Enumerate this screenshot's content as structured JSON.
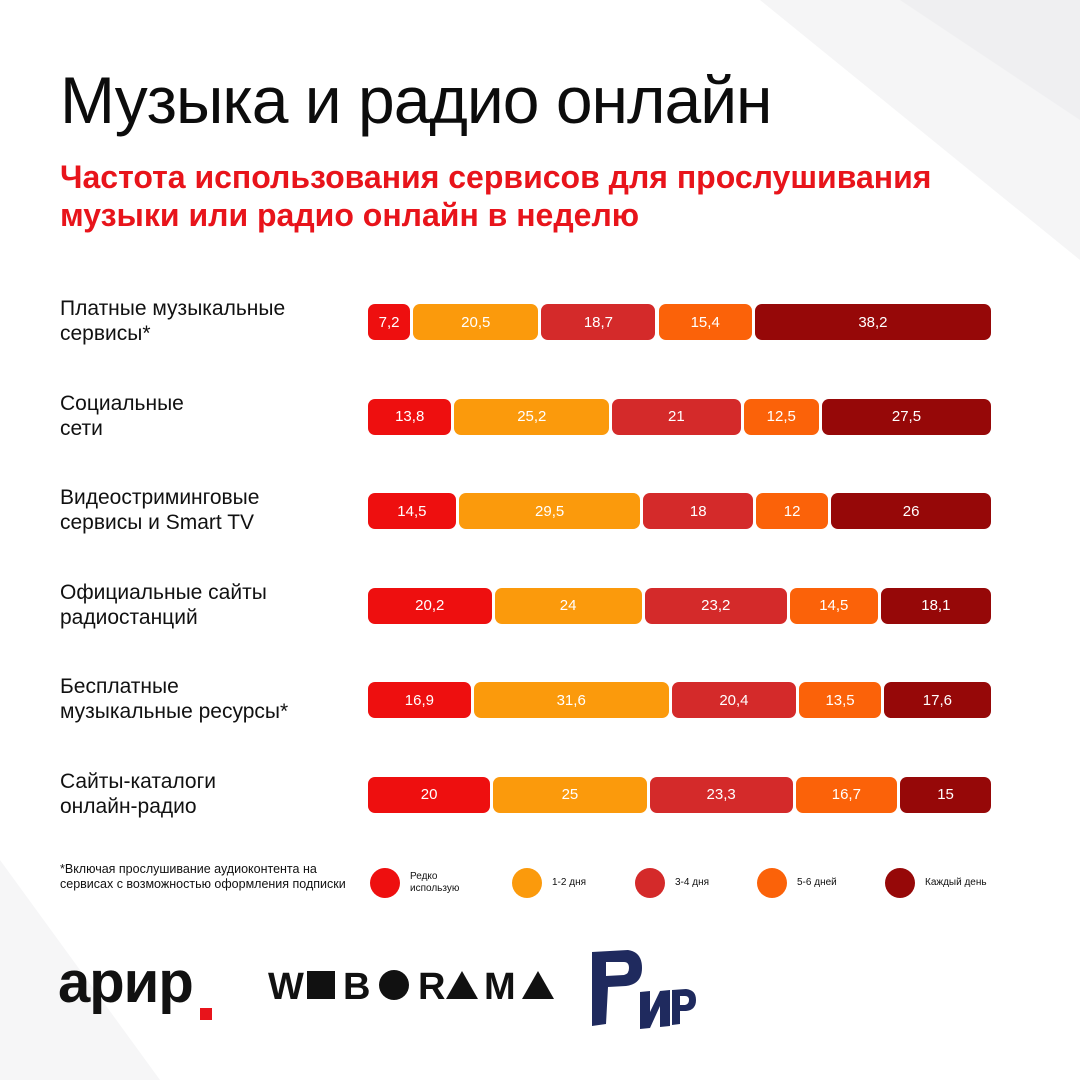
{
  "header": {
    "title": "Музыка и радио онлайн",
    "subtitle": "Частота использования сервисов для прослушивания музыки или радио онлайн в неделю"
  },
  "colors": {
    "rare": "#ee0f0f",
    "d12": "#fb9a0c",
    "d34": "#d42a2a",
    "d56": "#fb6209",
    "daily": "#960808",
    "accent": "#e8141b",
    "logo_navy": "#1f2a5e"
  },
  "chart_data": {
    "type": "bar",
    "orientation": "horizontal",
    "stacked": true,
    "unit": "%",
    "title": "Частота использования сервисов для прослушивания музыки или радио онлайн в неделю",
    "categories": [
      "Платные музыкальные сервисы*",
      "Социальные сети",
      "Видеостриминговые сервисы и Smart TV",
      "Официальные сайты радиостанций",
      "Бесплатные музыкальные ресурсы*",
      "Сайты-каталоги онлайн-радио"
    ],
    "category_labels": [
      [
        "Платные музыкальные",
        "сервисы*"
      ],
      [
        "Социальные",
        "сети"
      ],
      [
        "Видеостриминговые",
        "сервисы и Smart TV"
      ],
      [
        "Официальные сайты",
        "радиостанций"
      ],
      [
        "Бесплатные",
        "музыкальные ресурсы*"
      ],
      [
        "Сайты-каталоги",
        "онлайн-радио"
      ]
    ],
    "series": [
      {
        "name": "Редко использую",
        "key": "rare",
        "values": [
          7.2,
          13.8,
          14.5,
          20.2,
          16.9,
          20
        ]
      },
      {
        "name": "1-2 дня",
        "key": "d12",
        "values": [
          20.5,
          25.2,
          29.5,
          24,
          31.6,
          25
        ]
      },
      {
        "name": "3-4 дня",
        "key": "d34",
        "values": [
          18.7,
          21,
          18,
          23.2,
          20.4,
          23.3
        ]
      },
      {
        "name": "5-6 дней",
        "key": "d56",
        "values": [
          15.4,
          12.5,
          12,
          14.5,
          13.5,
          16.7
        ]
      },
      {
        "name": "Каждый день",
        "key": "daily",
        "values": [
          38.2,
          27.5,
          26,
          18.1,
          17.6,
          15
        ]
      }
    ],
    "value_labels": [
      [
        "7,2",
        "20,5",
        "18,7",
        "15,4",
        "38,2"
      ],
      [
        "13,8",
        "25,2",
        "21",
        "12,5",
        "27,5"
      ],
      [
        "14,5",
        "29,5",
        "18",
        "12",
        "26"
      ],
      [
        "20,2",
        "24",
        "23,2",
        "14,5",
        "18,1"
      ],
      [
        "16,9",
        "31,6",
        "20,4",
        "13,5",
        "17,6"
      ],
      [
        "20",
        "25",
        "23,3",
        "16,7",
        "15"
      ]
    ],
    "legend": [
      {
        "label": "Редко\nиспользую",
        "key": "rare"
      },
      {
        "label": "1-2 дня",
        "key": "d12"
      },
      {
        "label": "3-4 дня",
        "key": "d34"
      },
      {
        "label": "5-6 дней",
        "key": "d56"
      },
      {
        "label": "Каждый день",
        "key": "daily"
      }
    ]
  },
  "footnote": "*Включая прослушивание аудиоконтента на сервисах с возможностью оформления подписки",
  "logos": {
    "arir": "арир",
    "weborama": "WEBORAMA",
    "rir": "РИР"
  }
}
